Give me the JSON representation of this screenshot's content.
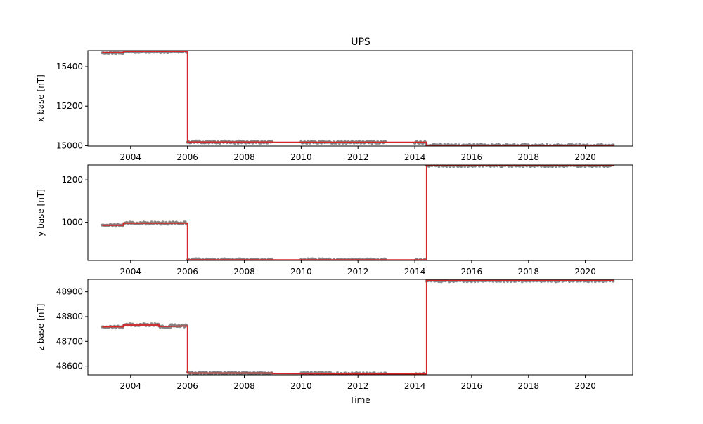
{
  "colors": {
    "observations": "#7f7f7f",
    "baseline": "#d62728",
    "frame": "#000000",
    "background": "#ffffff"
  },
  "chart_data": {
    "type": "line",
    "title": "UPS",
    "xlabel": "Time",
    "x_axis": {
      "type": "date",
      "range": [
        "2002-07-01",
        "2021-09-01"
      ],
      "ticks": [
        "2004",
        "2006",
        "2008",
        "2010",
        "2012",
        "2014",
        "2016",
        "2018",
        "2020"
      ]
    },
    "grid": false,
    "panels": [
      {
        "ylabel": "x base [nT]",
        "ylim": [
          14998,
          15482
        ],
        "yticks": [
          15000,
          15200,
          15400
        ],
        "observations": {
          "type": "scatter",
          "segments": [
            {
              "x": [
                "2003-01-01",
                "2003-10-01"
              ],
              "y": 15470
            },
            {
              "x": [
                "2003-10-01",
                "2006-01-01"
              ],
              "y": 15477
            },
            {
              "x": [
                "2006-01-01",
                "2009-01-01"
              ],
              "y": 15018
            },
            {
              "x": [
                "2010-01-01",
                "2013-01-01"
              ],
              "y": 15017
            },
            {
              "x": [
                "2014-01-01",
                "2014-06-01"
              ],
              "y": 15016
            },
            {
              "x": [
                "2014-06-01",
                "2021-01-01"
              ],
              "y": 15001
            }
          ]
        },
        "baseline": {
          "type": "line",
          "points": [
            {
              "x": "2003-01-01",
              "y": 15472
            },
            {
              "x": "2003-10-01",
              "y": 15472
            },
            {
              "x": "2003-10-01",
              "y": 15478
            },
            {
              "x": "2006-01-01",
              "y": 15478
            },
            {
              "x": "2006-01-01",
              "y": 15018
            },
            {
              "x": "2009-01-01",
              "y": 15018
            },
            {
              "x": "2009-01-01",
              "y": 15017
            },
            {
              "x": "2014-06-01",
              "y": 15017
            },
            {
              "x": "2014-06-01",
              "y": 15001
            },
            {
              "x": "2021-01-01",
              "y": 15001
            }
          ]
        }
      },
      {
        "ylabel": "y base [nT]",
        "ylim": [
          820,
          1270
        ],
        "yticks": [
          1000,
          1200
        ],
        "observations": {
          "type": "scatter",
          "segments": [
            {
              "x": [
                "2003-01-01",
                "2003-10-01"
              ],
              "y": 986
            },
            {
              "x": [
                "2003-10-01",
                "2006-01-01"
              ],
              "y": 996
            },
            {
              "x": [
                "2006-01-01",
                "2009-01-01"
              ],
              "y": 823
            },
            {
              "x": [
                "2010-01-01",
                "2013-01-01"
              ],
              "y": 823
            },
            {
              "x": [
                "2014-01-01",
                "2014-06-01"
              ],
              "y": 822
            },
            {
              "x": [
                "2014-06-01",
                "2021-01-01"
              ],
              "y": 1268
            }
          ]
        },
        "baseline": {
          "type": "line",
          "points": [
            {
              "x": "2003-01-01",
              "y": 986
            },
            {
              "x": "2003-10-01",
              "y": 986
            },
            {
              "x": "2003-10-01",
              "y": 996
            },
            {
              "x": "2006-01-01",
              "y": 996
            },
            {
              "x": "2006-01-01",
              "y": 823
            },
            {
              "x": "2014-06-01",
              "y": 823
            },
            {
              "x": "2014-06-01",
              "y": 1268
            },
            {
              "x": "2021-01-01",
              "y": 1268
            }
          ]
        }
      },
      {
        "ylabel": "z base [nT]",
        "ylim": [
          48565,
          48950
        ],
        "yticks": [
          48600,
          48700,
          48800,
          48900
        ],
        "observations": {
          "type": "scatter",
          "segments": [
            {
              "x": [
                "2003-01-01",
                "2003-10-01"
              ],
              "y": 48758
            },
            {
              "x": [
                "2003-10-01",
                "2005-01-01"
              ],
              "y": 48767
            },
            {
              "x": [
                "2005-01-01",
                "2005-06-01"
              ],
              "y": 48758
            },
            {
              "x": [
                "2005-06-01",
                "2006-01-01"
              ],
              "y": 48763
            },
            {
              "x": [
                "2006-01-01",
                "2009-01-01"
              ],
              "y": 48572
            },
            {
              "x": [
                "2010-01-01",
                "2011-01-01"
              ],
              "y": 48572
            },
            {
              "x": [
                "2011-01-01",
                "2013-01-01"
              ],
              "y": 48569
            },
            {
              "x": [
                "2014-01-01",
                "2014-06-01"
              ],
              "y": 48568
            },
            {
              "x": [
                "2014-06-01",
                "2021-01-01"
              ],
              "y": 48945
            }
          ]
        },
        "baseline": {
          "type": "line",
          "points": [
            {
              "x": "2003-01-01",
              "y": 48759
            },
            {
              "x": "2003-10-01",
              "y": 48759
            },
            {
              "x": "2003-10-01",
              "y": 48766
            },
            {
              "x": "2005-01-01",
              "y": 48766
            },
            {
              "x": "2005-01-01",
              "y": 48760
            },
            {
              "x": "2006-01-01",
              "y": 48762
            },
            {
              "x": "2006-01-01",
              "y": 48572
            },
            {
              "x": "2009-01-01",
              "y": 48572
            },
            {
              "x": "2009-01-01",
              "y": 48570
            },
            {
              "x": "2014-06-01",
              "y": 48568
            },
            {
              "x": "2014-06-01",
              "y": 48945
            },
            {
              "x": "2021-01-01",
              "y": 48945
            }
          ]
        }
      }
    ]
  }
}
